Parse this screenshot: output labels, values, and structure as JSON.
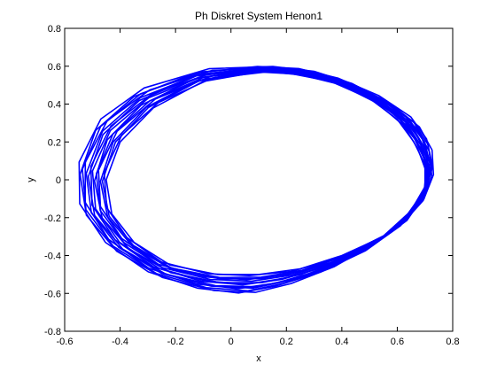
{
  "chart_data": {
    "type": "line",
    "title": "Ph Diskret System Henon1",
    "xlabel": "x",
    "ylabel": "y",
    "xlim": [
      -0.6,
      0.8
    ],
    "ylim": [
      -0.8,
      0.8
    ],
    "xticks": [
      -0.6,
      -0.4,
      -0.2,
      0,
      0.2,
      0.4,
      0.6,
      0.8
    ],
    "yticks": [
      -0.8,
      -0.6,
      -0.4,
      -0.2,
      0,
      0.2,
      0.4,
      0.6,
      0.8
    ],
    "xtick_labels": [
      "-0.6",
      "-0.4",
      "-0.2",
      "0",
      "0.2",
      "0.4",
      "0.6",
      "0.8"
    ],
    "ytick_labels": [
      "-0.8",
      "-0.6",
      "-0.4",
      "-0.2",
      "0",
      "0.2",
      "0.4",
      "0.6",
      "0.8"
    ],
    "grid": false,
    "line_color": "#0000ff",
    "series": [
      {
        "x": [
          0.1,
          0.22,
          0.36,
          0.5,
          0.6,
          0.66,
          0.7,
          0.7,
          0.65,
          0.55,
          0.4,
          0.25,
          0.1,
          -0.05,
          -0.22,
          -0.35,
          -0.43,
          -0.45,
          -0.4,
          -0.28,
          -0.1,
          0.1
        ],
        "y": [
          0.57,
          0.56,
          0.52,
          0.43,
          0.32,
          0.2,
          0.08,
          -0.05,
          -0.18,
          -0.3,
          -0.4,
          -0.47,
          -0.5,
          -0.5,
          -0.45,
          -0.33,
          -0.18,
          0.0,
          0.2,
          0.38,
          0.52,
          0.57
        ]
      },
      {
        "x": [
          0.13,
          0.28,
          0.42,
          0.56,
          0.67,
          0.72,
          0.73,
          0.7,
          0.62,
          0.5,
          0.34,
          0.18,
          0.05,
          -0.1,
          -0.28,
          -0.44,
          -0.54,
          -0.55,
          -0.48,
          -0.33,
          -0.1,
          0.13
        ],
        "y": [
          0.6,
          0.58,
          0.52,
          0.42,
          0.3,
          0.18,
          0.05,
          -0.08,
          -0.22,
          -0.36,
          -0.48,
          -0.56,
          -0.6,
          -0.58,
          -0.5,
          -0.35,
          -0.15,
          0.07,
          0.3,
          0.47,
          0.58,
          0.6
        ]
      }
    ]
  }
}
